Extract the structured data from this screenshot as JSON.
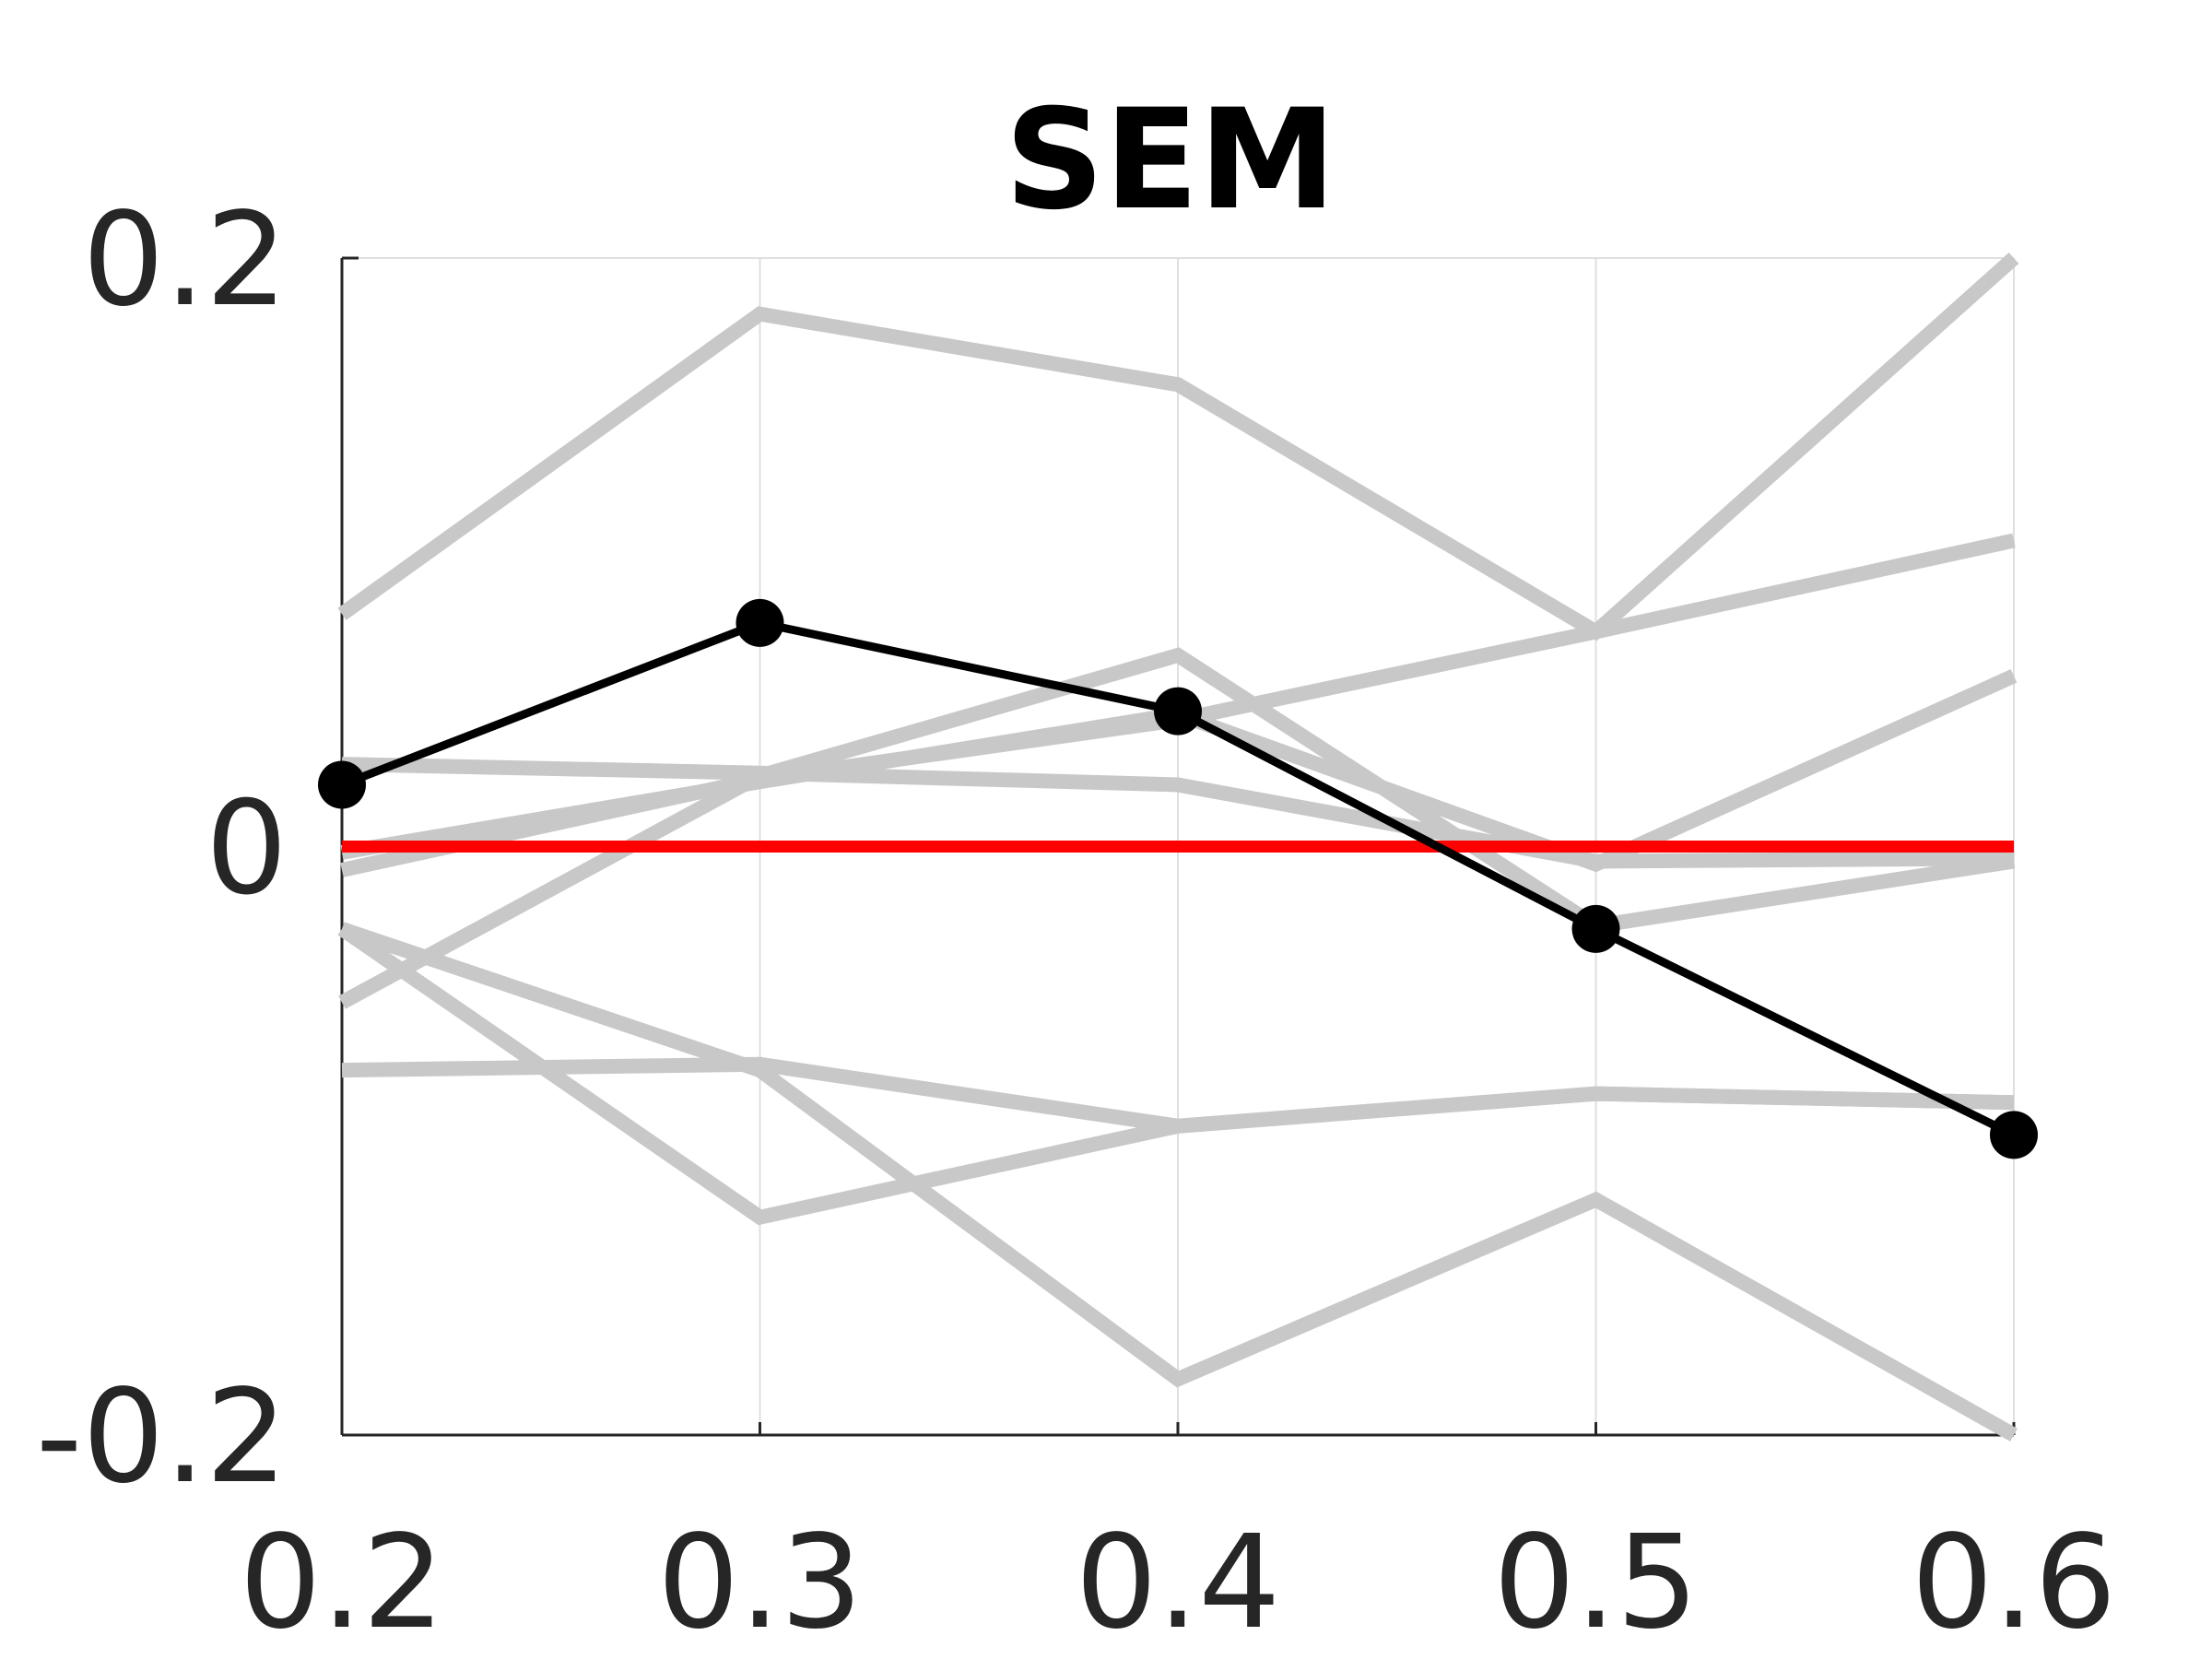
{
  "chart_data": {
    "type": "line",
    "title": "SEM",
    "xlabel": "",
    "ylabel": "",
    "x": [
      0.2,
      0.3,
      0.4,
      0.5,
      0.6
    ],
    "x_tick_labels": [
      "0.2",
      "0.3",
      "0.4",
      "0.5",
      "0.6"
    ],
    "y_tick_values": [
      -0.2,
      0,
      0.2
    ],
    "y_tick_labels": [
      "-0.2",
      "0",
      "0.2"
    ],
    "xlim": [
      0.2,
      0.6
    ],
    "ylim": [
      -0.2,
      0.2
    ],
    "grid": "vertical",
    "reference_line": {
      "y": 0,
      "color": "#ff0000"
    },
    "highlight_series": {
      "values": [
        0.021,
        0.076,
        0.046,
        -0.028,
        -0.098
      ],
      "color": "#000000",
      "markers": true
    },
    "background_series": [
      {
        "values": [
          0.079,
          0.181,
          0.157,
          0.073,
          0.2
        ],
        "color": "#c8c8c8"
      },
      {
        "values": [
          -0.008,
          0.023,
          0.043,
          0.073,
          0.104
        ],
        "color": "#c8c8c8"
      },
      {
        "values": [
          -0.053,
          0.024,
          0.065,
          -0.027,
          -0.005
        ],
        "color": "#c8c8c8"
      },
      {
        "values": [
          -0.002,
          0.022,
          0.045,
          -0.006,
          0.058
        ],
        "color": "#c8c8c8"
      },
      {
        "values": [
          0.028,
          0.025,
          0.021,
          -0.005,
          -0.004
        ],
        "color": "#c8c8c8"
      },
      {
        "values": [
          -0.076,
          -0.074,
          -0.095,
          -0.084,
          -0.087
        ],
        "color": "#c8c8c8"
      },
      {
        "values": [
          -0.028,
          -0.126,
          -0.095,
          -0.084,
          -0.087
        ],
        "color": "#c8c8c8"
      },
      {
        "values": [
          -0.028,
          -0.076,
          -0.181,
          -0.12,
          -0.2
        ],
        "color": "#c8c8c8"
      }
    ]
  }
}
